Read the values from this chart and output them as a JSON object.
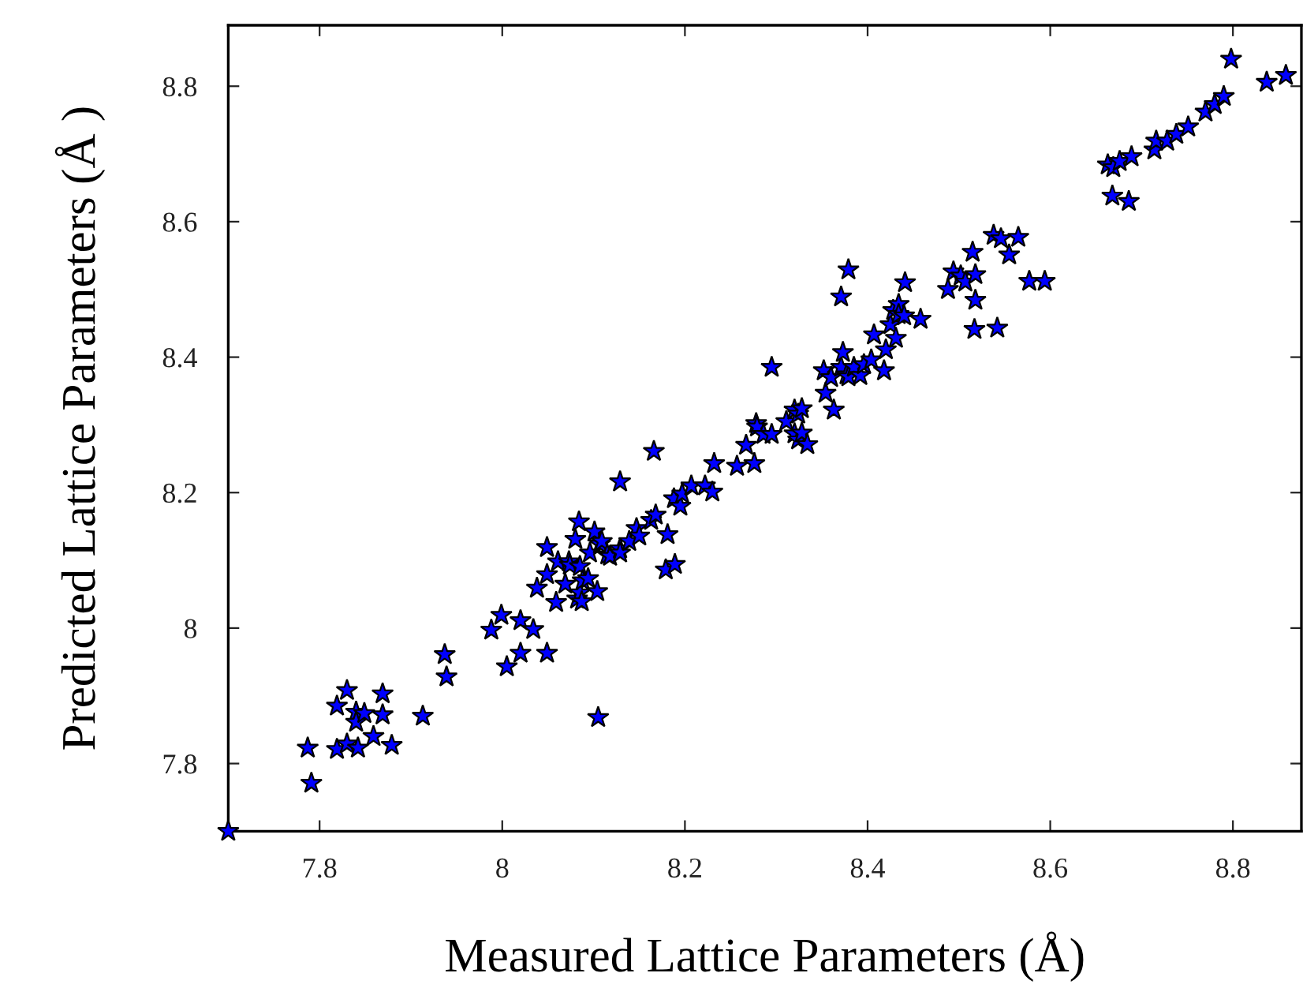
{
  "chart_data": {
    "type": "scatter",
    "xlabel": "Measured Lattice Parameters (Å)",
    "ylabel": "Predicted Lattice Parameters (Å )",
    "xlim": [
      7.7,
      8.875
    ],
    "ylim": [
      7.7,
      8.89
    ],
    "xticks": [
      7.8,
      8,
      8.2,
      8.4,
      8.6,
      8.8
    ],
    "yticks": [
      7.8,
      8,
      8.2,
      8.4,
      8.6,
      8.8
    ],
    "grid": false,
    "legend": false,
    "marker": "star",
    "series": [
      {
        "color": "#0000ff",
        "x": [
          7.787,
          7.791,
          7.819,
          7.819,
          7.83,
          7.83,
          7.84,
          7.84,
          7.842,
          7.849,
          7.859,
          7.869,
          7.869,
          7.879,
          7.913,
          7.937,
          7.939,
          7.988,
          7.999,
          8.005,
          8.02,
          8.02,
          8.034,
          8.038,
          8.049,
          8.049,
          8.049,
          8.059,
          8.061,
          8.069,
          8.073,
          8.074,
          8.08,
          8.082,
          8.084,
          8.085,
          8.085,
          8.087,
          8.088,
          8.094,
          8.096,
          8.101,
          8.104,
          8.105,
          8.107,
          8.109,
          8.115,
          8.118,
          8.129,
          8.129,
          8.129,
          8.139,
          8.147,
          8.15,
          8.163,
          8.168,
          8.166,
          8.179,
          8.181,
          8.188,
          8.189,
          8.195,
          8.197,
          8.207,
          8.222,
          8.23,
          8.232,
          8.257,
          8.267,
          8.276,
          8.278,
          8.279,
          8.286,
          8.295,
          8.295,
          8.311,
          8.32,
          8.324,
          8.328,
          8.32,
          8.324,
          8.328,
          8.334,
          8.354,
          8.363,
          8.352,
          8.36,
          8.371,
          8.373,
          8.371,
          8.379,
          8.377,
          8.379,
          8.385,
          8.392,
          8.396,
          8.404,
          8.418,
          8.42,
          8.407,
          8.425,
          8.431,
          8.428,
          8.434,
          8.434,
          8.44,
          8.441,
          8.458,
          8.488,
          8.494,
          8.502,
          8.507,
          8.518,
          8.518,
          8.517,
          8.515,
          8.542,
          8.538,
          8.546,
          8.555,
          8.565,
          8.577,
          8.594,
          8.663,
          8.669,
          8.676,
          8.689,
          8.668,
          8.686,
          8.714,
          8.716,
          8.728,
          8.738,
          8.751,
          8.77,
          8.78,
          8.79,
          8.798,
          8.837,
          8.858
        ],
        "values": [
          7.823,
          7.771,
          7.885,
          7.821,
          7.908,
          7.829,
          7.876,
          7.861,
          7.823,
          7.874,
          7.84,
          7.903,
          7.872,
          7.827,
          7.87,
          7.961,
          7.928,
          7.997,
          8.019,
          7.943,
          8.011,
          7.963,
          7.998,
          8.059,
          8.119,
          8.079,
          7.963,
          8.038,
          8.098,
          8.065,
          8.098,
          8.093,
          8.131,
          8.043,
          8.157,
          8.091,
          8.052,
          8.039,
          8.07,
          8.073,
          8.111,
          8.142,
          8.054,
          7.868,
          8.124,
          8.128,
          8.108,
          8.106,
          8.216,
          8.117,
          8.111,
          8.128,
          8.147,
          8.136,
          8.159,
          8.167,
          8.261,
          8.086,
          8.138,
          8.191,
          8.094,
          8.18,
          8.198,
          8.21,
          8.21,
          8.201,
          8.243,
          8.239,
          8.27,
          8.243,
          8.302,
          8.297,
          8.286,
          8.286,
          8.385,
          8.305,
          8.322,
          8.316,
          8.324,
          8.287,
          8.278,
          8.288,
          8.271,
          8.347,
          8.322,
          8.38,
          8.37,
          8.385,
          8.407,
          8.489,
          8.529,
          8.374,
          8.371,
          8.385,
          8.373,
          8.389,
          8.396,
          8.38,
          8.411,
          8.433,
          8.448,
          8.428,
          8.469,
          8.478,
          8.463,
          8.461,
          8.51,
          8.456,
          8.5,
          8.526,
          8.52,
          8.511,
          8.522,
          8.484,
          8.441,
          8.555,
          8.443,
          8.58,
          8.575,
          8.551,
          8.577,
          8.512,
          8.512,
          8.684,
          8.68,
          8.689,
          8.696,
          8.638,
          8.63,
          8.706,
          8.719,
          8.719,
          8.729,
          8.74,
          8.762,
          8.773,
          8.785,
          8.84,
          8.806,
          8.816
        ]
      },
      {
        "color": "#0000ff",
        "x": [
          7.7
        ],
        "values": [
          7.7
        ]
      }
    ]
  }
}
